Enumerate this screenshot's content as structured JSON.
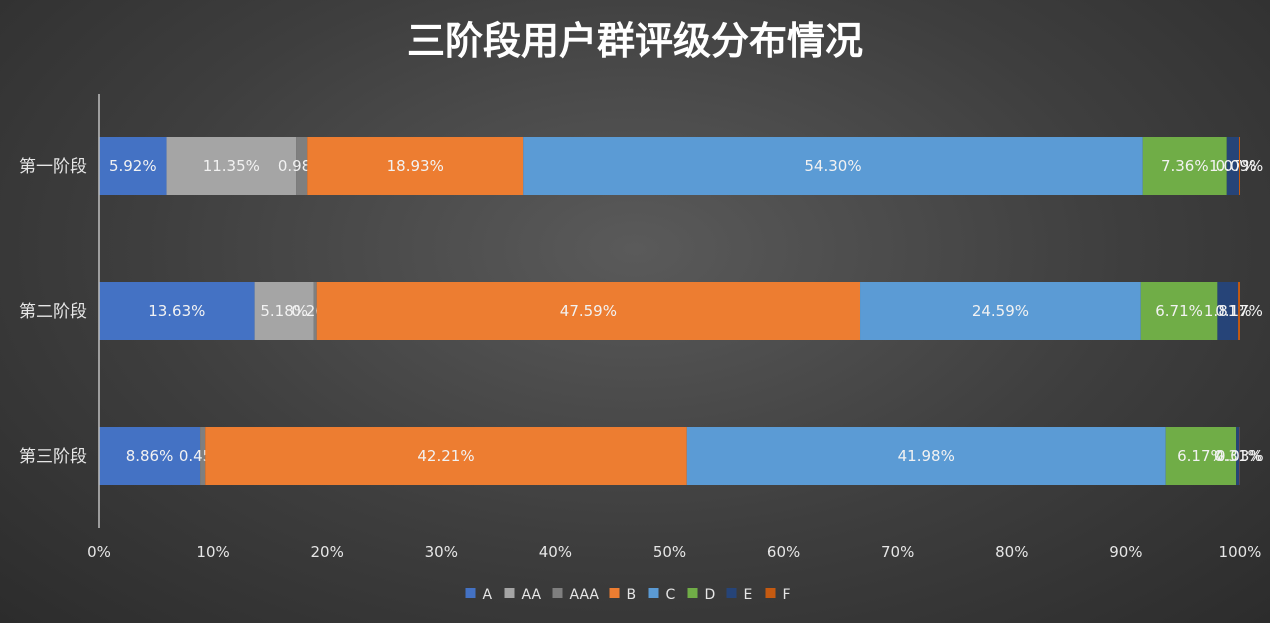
{
  "chart_data": {
    "type": "bar",
    "orientation": "horizontal",
    "stacked": "percent",
    "title": "三阶段用户群评级分布情况",
    "categories": [
      "第一阶段",
      "第二阶段",
      "第三阶段"
    ],
    "series": [
      {
        "name": "A",
        "color": "#4472C4",
        "values": [
          5.92,
          13.63,
          8.86
        ]
      },
      {
        "name": "AA",
        "color": "#A5A5A5",
        "values": [
          11.35,
          5.18,
          0.0
        ]
      },
      {
        "name": "AAA",
        "color": "#7F7F7F",
        "values": [
          0.98,
          0.26,
          0.45
        ]
      },
      {
        "name": "B",
        "color": "#ED7D31",
        "values": [
          18.93,
          47.59,
          42.21
        ]
      },
      {
        "name": "C",
        "color": "#5B9BD5",
        "values": [
          54.3,
          24.59,
          41.98
        ]
      },
      {
        "name": "D",
        "color": "#70AD47",
        "values": [
          7.36,
          6.71,
          6.17
        ]
      },
      {
        "name": "E",
        "color": "#264478",
        "values": [
          1.07,
          1.81,
          0.31
        ]
      },
      {
        "name": "F",
        "color": "#C55A11",
        "values": [
          0.09,
          0.17,
          0.03
        ]
      }
    ],
    "x_ticks": [
      "0%",
      "10%",
      "20%",
      "30%",
      "40%",
      "50%",
      "60%",
      "70%",
      "80%",
      "90%",
      "100%"
    ],
    "xlim": [
      0,
      100
    ],
    "legend_position": "bottom",
    "grid": false
  }
}
